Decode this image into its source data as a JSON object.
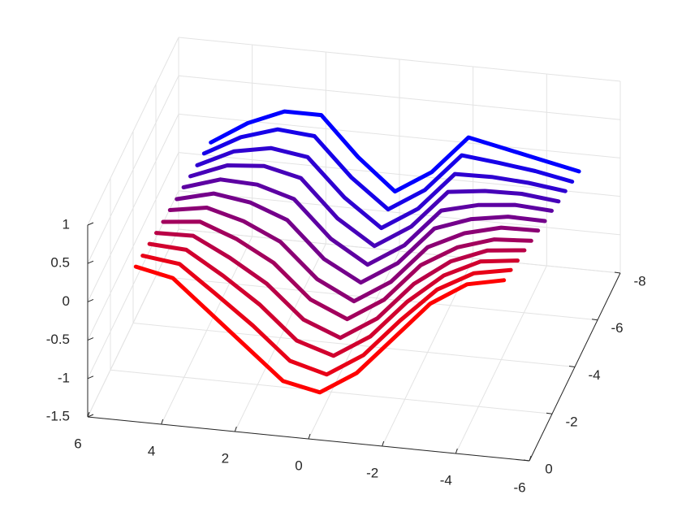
{
  "chart_data": {
    "type": "waterfall3d",
    "x": [
      5,
      4,
      3,
      2,
      1,
      0,
      -1,
      -2,
      -3,
      -4,
      -5
    ],
    "series": [
      {
        "y": -1,
        "color": "#ff0000",
        "values": [
          0.2,
          0.1,
          -0.3,
          -0.7,
          -1.1,
          -1.2,
          -0.9,
          -0.4,
          0.1,
          0.4,
          0.5
        ]
      },
      {
        "y": -1.6,
        "color": "#e80017",
        "values": [
          0.16,
          0.1,
          -0.25,
          -0.61,
          -1.02,
          -1.15,
          -0.85,
          -0.35,
          0.1,
          0.36,
          0.45
        ]
      },
      {
        "y": -2.2,
        "color": "#d1002e",
        "values": [
          0.13,
          0.1,
          -0.19,
          -0.52,
          -0.94,
          -1.09,
          -0.79,
          -0.29,
          0.1,
          0.33,
          0.39
        ]
      },
      {
        "y": -2.8,
        "color": "#b90046",
        "values": [
          0.09,
          0.1,
          -0.14,
          -0.43,
          -0.85,
          -1.04,
          -0.74,
          -0.24,
          0.1,
          0.29,
          0.34
        ]
      },
      {
        "y": -3.4,
        "color": "#a2005d",
        "values": [
          0.05,
          0.1,
          -0.08,
          -0.34,
          -0.77,
          -0.98,
          -0.68,
          -0.18,
          0.1,
          0.25,
          0.28
        ]
      },
      {
        "y": -4,
        "color": "#8b0074",
        "values": [
          0.02,
          0.1,
          -0.03,
          -0.25,
          -0.69,
          -0.93,
          -0.63,
          -0.13,
          0.1,
          0.22,
          0.23
        ]
      },
      {
        "y": -4.6,
        "color": "#74008b",
        "values": [
          -0.02,
          0.1,
          0.03,
          -0.15,
          -0.61,
          -0.87,
          -0.57,
          -0.07,
          0.1,
          0.18,
          0.17
        ]
      },
      {
        "y": -5.2,
        "color": "#5d00a2",
        "values": [
          -0.05,
          0.1,
          0.08,
          -0.06,
          -0.53,
          -0.82,
          -0.52,
          -0.02,
          0.1,
          0.15,
          0.12
        ]
      },
      {
        "y": -5.8,
        "color": "#4600b9",
        "values": [
          -0.09,
          0.1,
          0.14,
          0.03,
          -0.45,
          -0.76,
          -0.46,
          0.04,
          0.1,
          0.11,
          0.06
        ]
      },
      {
        "y": -6.4,
        "color": "#2e00d1",
        "values": [
          -0.13,
          0.1,
          0.19,
          0.12,
          -0.36,
          -0.71,
          -0.41,
          0.09,
          0.1,
          0.07,
          0.01
        ]
      },
      {
        "y": -7,
        "color": "#1700e8",
        "values": [
          -0.16,
          0.1,
          0.25,
          0.21,
          -0.28,
          -0.65,
          -0.35,
          0.15,
          0.1,
          0.04,
          -0.05
        ]
      },
      {
        "y": -7.6,
        "color": "#0000ff",
        "values": [
          -0.2,
          0.1,
          0.3,
          0.3,
          -0.2,
          -0.6,
          -0.3,
          0.2,
          0.1,
          0.0,
          -0.1
        ]
      }
    ],
    "xlim": [
      6,
      -6
    ],
    "xticks": [
      6,
      4,
      2,
      0,
      -2,
      -4,
      -6
    ],
    "ylim": [
      0,
      -8
    ],
    "yticks": [
      0,
      -2,
      -4,
      -6,
      -8
    ],
    "zlim": [
      -1.5,
      1
    ],
    "zticks": [
      -1.5,
      -1,
      -0.5,
      0,
      0.5,
      1
    ],
    "grid": true
  }
}
